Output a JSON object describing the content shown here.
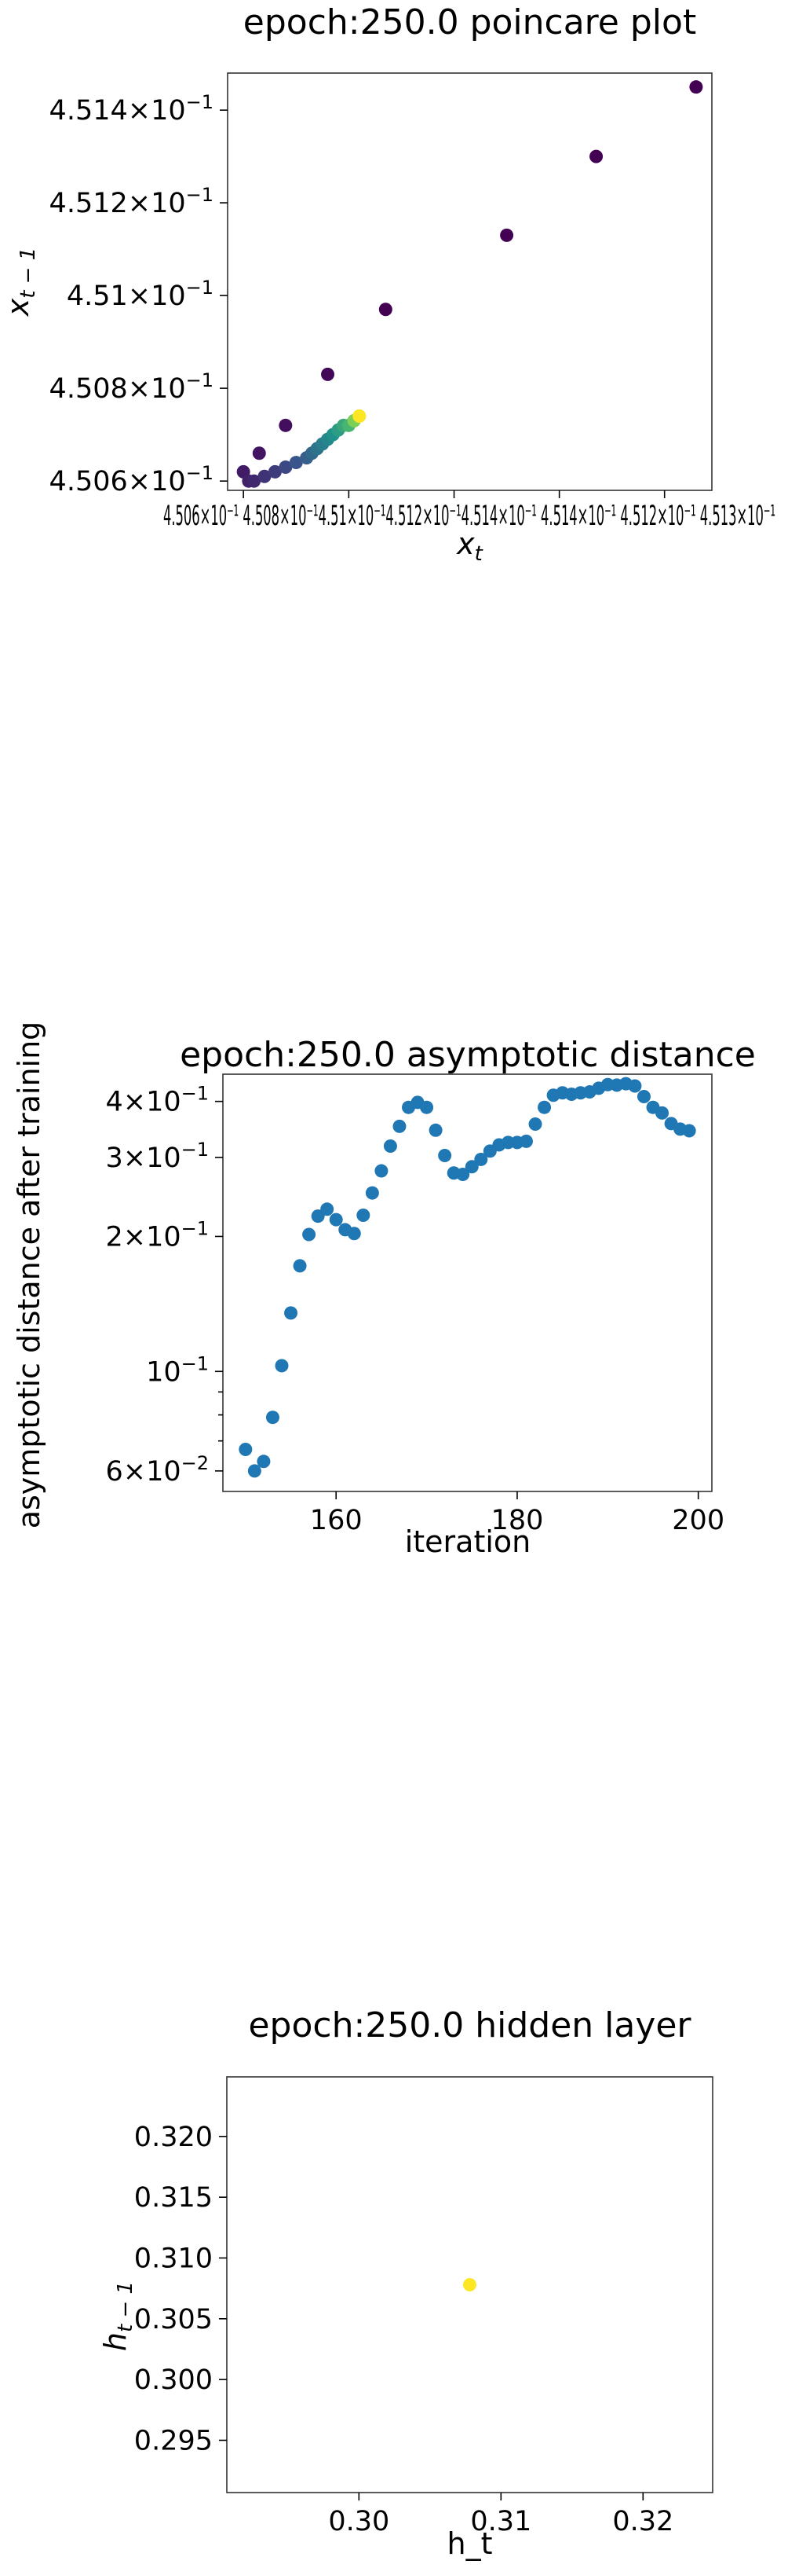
{
  "chart_data": [
    {
      "type": "scatter",
      "title": "epoch:250.0 poincare plot",
      "xlabel": "x_t",
      "ylabel": "x_{t-1}",
      "yscale": "log",
      "xscale": "log",
      "xlim": [
        0.45057,
        0.45149
      ],
      "ylim": [
        0.45058,
        0.45148
      ],
      "y_ticks": [
        {
          "value": 0.4506,
          "mantissa": "4.506",
          "base": "10",
          "exp": "−1"
        },
        {
          "value": 0.4508,
          "mantissa": "4.508",
          "base": "10",
          "exp": "−1"
        },
        {
          "value": 0.451,
          "mantissa": "4.51",
          "base": "10",
          "exp": "−1"
        },
        {
          "value": 0.4512,
          "mantissa": "4.512",
          "base": "10",
          "exp": "−1"
        },
        {
          "value": 0.4514,
          "mantissa": "4.514",
          "base": "10",
          "exp": "−1"
        }
      ],
      "x_tick_labels_overlapping": "4.506×10⁻¹ 4.508×10⁻¹4.51×10⁻¹4.512×10⁻¹4.514×10⁻¹ 4.514×10⁻¹ 4.512×10⁻¹ 4.513×10⁻¹",
      "colormap": [
        "#440154",
        "#3b528b",
        "#21918c",
        "#5ec962",
        "#fde725"
      ],
      "points": [
        {
          "x": 0.45146,
          "y": 0.45145,
          "c": 0.0
        },
        {
          "x": 0.45127,
          "y": 0.4513,
          "c": 0.0
        },
        {
          "x": 0.4511,
          "y": 0.45113,
          "c": 0.0
        },
        {
          "x": 0.45087,
          "y": 0.45097,
          "c": 0.0
        },
        {
          "x": 0.45076,
          "y": 0.45083,
          "c": 0.02
        },
        {
          "x": 0.45068,
          "y": 0.45072,
          "c": 0.04
        },
        {
          "x": 0.45063,
          "y": 0.45066,
          "c": 0.06
        },
        {
          "x": 0.4506,
          "y": 0.45062,
          "c": 0.08
        },
        {
          "x": 0.45061,
          "y": 0.4506,
          "c": 0.1
        },
        {
          "x": 0.45062,
          "y": 0.4506,
          "c": 0.12
        },
        {
          "x": 0.45064,
          "y": 0.45061,
          "c": 0.15
        },
        {
          "x": 0.45066,
          "y": 0.45062,
          "c": 0.18
        },
        {
          "x": 0.45068,
          "y": 0.45063,
          "c": 0.22
        },
        {
          "x": 0.4507,
          "y": 0.45064,
          "c": 0.26
        },
        {
          "x": 0.45072,
          "y": 0.45065,
          "c": 0.3
        },
        {
          "x": 0.45073,
          "y": 0.45066,
          "c": 0.34
        },
        {
          "x": 0.45074,
          "y": 0.45067,
          "c": 0.38
        },
        {
          "x": 0.45075,
          "y": 0.45068,
          "c": 0.42
        },
        {
          "x": 0.45076,
          "y": 0.45069,
          "c": 0.46
        },
        {
          "x": 0.45077,
          "y": 0.4507,
          "c": 0.5
        },
        {
          "x": 0.45078,
          "y": 0.45071,
          "c": 0.55
        },
        {
          "x": 0.45079,
          "y": 0.45072,
          "c": 0.6
        },
        {
          "x": 0.4508,
          "y": 0.45072,
          "c": 0.66
        },
        {
          "x": 0.45081,
          "y": 0.45073,
          "c": 0.72
        },
        {
          "x": 0.45081,
          "y": 0.45073,
          "c": 0.8
        },
        {
          "x": 0.45082,
          "y": 0.45074,
          "c": 0.9
        },
        {
          "x": 0.45082,
          "y": 0.45074,
          "c": 1.0
        }
      ]
    },
    {
      "type": "scatter",
      "title": "epoch:250.0 asymptotic distance",
      "xlabel": "iteration",
      "ylabel": "asymptotic distance after training",
      "yscale": "log",
      "xlim": [
        147.5,
        201.5
      ],
      "ylim": [
        0.054,
        0.46
      ],
      "color": "#1f77b4",
      "x_ticks": [
        160,
        180,
        200
      ],
      "y_ticks": [
        {
          "value": 0.06,
          "mantissa": "6",
          "base": "10",
          "exp": "−2"
        },
        {
          "value": 0.1,
          "mantissa": "",
          "base": "10",
          "exp": "−1"
        },
        {
          "value": 0.2,
          "mantissa": "2",
          "base": "10",
          "exp": "−1"
        },
        {
          "value": 0.3,
          "mantissa": "3",
          "base": "10",
          "exp": "−1"
        },
        {
          "value": 0.4,
          "mantissa": "4",
          "base": "10",
          "exp": "−1"
        }
      ],
      "x": [
        150,
        151,
        152,
        153,
        154,
        155,
        156,
        157,
        158,
        159,
        160,
        161,
        162,
        163,
        164,
        165,
        166,
        167,
        168,
        169,
        170,
        171,
        172,
        173,
        174,
        175,
        176,
        177,
        178,
        179,
        180,
        181,
        182,
        183,
        184,
        185,
        186,
        187,
        188,
        189,
        190,
        191,
        192,
        193,
        194,
        195,
        196,
        197,
        198,
        199
      ],
      "y": [
        0.067,
        0.06,
        0.063,
        0.079,
        0.103,
        0.135,
        0.172,
        0.202,
        0.222,
        0.23,
        0.218,
        0.207,
        0.203,
        0.223,
        0.25,
        0.28,
        0.318,
        0.352,
        0.388,
        0.398,
        0.388,
        0.345,
        0.303,
        0.277,
        0.275,
        0.286,
        0.297,
        0.31,
        0.32,
        0.324,
        0.324,
        0.326,
        0.356,
        0.388,
        0.413,
        0.418,
        0.415,
        0.418,
        0.42,
        0.428,
        0.436,
        0.435,
        0.438,
        0.433,
        0.41,
        0.388,
        0.377,
        0.357,
        0.347,
        0.344
      ]
    },
    {
      "type": "scatter",
      "title": "epoch:250.0 hidden layer",
      "xlabel": "h_t",
      "ylabel": "h_{t-1}",
      "xlim": [
        0.2907,
        0.3249
      ],
      "ylim": [
        0.2907,
        0.3249
      ],
      "x_ticks": [
        "0.30",
        "0.31",
        "0.32"
      ],
      "y_ticks": [
        "0.295",
        "0.300",
        "0.305",
        "0.310",
        "0.315",
        "0.320"
      ],
      "points": [
        {
          "x": 0.3078,
          "y": 0.3078,
          "color": "#fde725"
        }
      ]
    }
  ]
}
